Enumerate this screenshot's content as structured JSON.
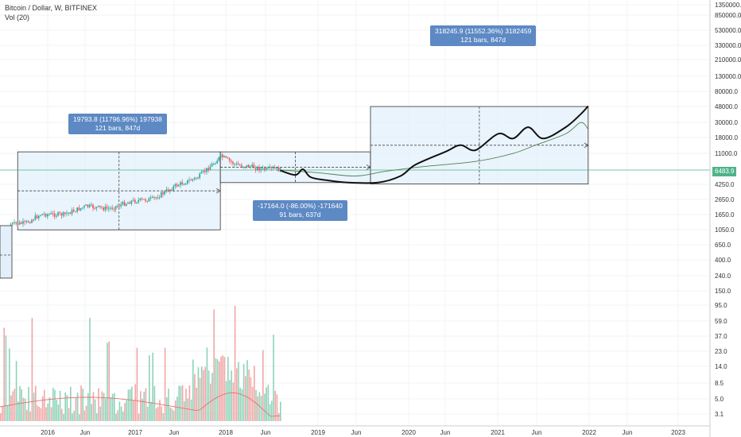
{
  "legend": {
    "symbol": "Bitcoin / Dollar, W, BITFINEX",
    "volume": "Vol (20)"
  },
  "current_price_label": "6483.9",
  "annotations": [
    {
      "line1": "19793.8 (11796.96%) 197938",
      "line2": "121 bars, 847d"
    },
    {
      "line1": "-17164.0 (-86.00%) -171640",
      "line2": "91 bars, 637d"
    },
    {
      "line1": "318245.9 (11552.36%) 3182459",
      "line2": "121 bars, 847d"
    }
  ],
  "colors": {
    "up": "#26a69a",
    "down": "#ef5350",
    "vol_up": "#8fd3b9",
    "vol_down": "#f2a6a6",
    "box_fill": "#e3f0fb",
    "box_stroke": "#333333",
    "projection": "#111111",
    "ma": "#4f7f4f",
    "vol_ma": "#e57373",
    "price_line": "#4fb38a"
  },
  "chart_data": {
    "type": "candlestick",
    "title": "Bitcoin / Dollar, W, BITFINEX",
    "y_scale": "log",
    "y_tick_labels": [
      "1350000.0",
      "850000.0",
      "530000.0",
      "330000.0",
      "210000.0",
      "130000.0",
      "80000.0",
      "48000.0",
      "30000.0",
      "18000.0",
      "11000.0",
      "6483.9",
      "4250.0",
      "2650.0",
      "1650.0",
      "1050.0",
      "650.0",
      "400.0",
      "240.0",
      "150.0",
      "95.0",
      "59.0",
      "37.0",
      "23.0",
      "14.0",
      "8.5",
      "5.0",
      "3.1"
    ],
    "x_tick_labels": [
      "2016",
      "Jun",
      "2017",
      "Jun",
      "2018",
      "Jun",
      "2019",
      "Jun",
      "2020",
      "Jun",
      "2021",
      "Jun",
      "2022",
      "Jun",
      "2023"
    ],
    "x_range": [
      "2015-07",
      "2023-07"
    ],
    "price_series": [
      [
        "2015-08",
        230
      ],
      [
        "2015-10",
        250
      ],
      [
        "2015-12",
        430
      ],
      [
        "2016-03",
        420
      ],
      [
        "2016-06",
        700
      ],
      [
        "2016-09",
        600
      ],
      [
        "2016-12",
        950
      ],
      [
        "2017-03",
        1100
      ],
      [
        "2017-06",
        2500
      ],
      [
        "2017-09",
        4200
      ],
      [
        "2017-12",
        15000
      ],
      [
        "2018-02",
        9000
      ],
      [
        "2018-04",
        8000
      ],
      [
        "2018-06",
        6500
      ],
      [
        "2018-07",
        7000
      ],
      [
        "2018-08",
        6483.9
      ]
    ],
    "projection_series": [
      [
        "2018-08",
        6300
      ],
      [
        "2018-10",
        4800
      ],
      [
        "2018-11",
        6800
      ],
      [
        "2018-12",
        4200
      ],
      [
        "2019-02",
        3500
      ],
      [
        "2019-05",
        3000
      ],
      [
        "2019-09",
        3000
      ],
      [
        "2019-12",
        4500
      ],
      [
        "2020-02",
        9000
      ],
      [
        "2020-06",
        20000
      ],
      [
        "2020-08",
        30000
      ],
      [
        "2020-10",
        22000
      ],
      [
        "2021-01",
        60000
      ],
      [
        "2021-03",
        45000
      ],
      [
        "2021-05",
        90000
      ],
      [
        "2021-07",
        45000
      ],
      [
        "2021-10",
        90000
      ],
      [
        "2021-12",
        200000
      ],
      [
        "2022-01",
        330000
      ]
    ],
    "ma_series": [
      [
        "2018-08",
        6500
      ],
      [
        "2019-01",
        5500
      ],
      [
        "2019-06",
        4500
      ],
      [
        "2019-10",
        6000
      ],
      [
        "2020-03",
        8000
      ],
      [
        "2020-10",
        11000
      ],
      [
        "2021-03",
        18000
      ],
      [
        "2021-06",
        30000
      ],
      [
        "2021-10",
        60000
      ],
      [
        "2021-12",
        120000
      ],
      [
        "2022-01",
        80000
      ]
    ],
    "measure_boxes": [
      {
        "from": "2015-09",
        "to": "2017-12",
        "low": 165,
        "high": 19800,
        "change": "19793.8 (11796.96%)",
        "bars": "121 bars, 847d"
      },
      {
        "from": "2017-12",
        "to": "2019-08",
        "low": 3000,
        "high": 19800,
        "change": "-17164.0 (-86.00%)",
        "bars": "91 bars, 637d"
      },
      {
        "from": "2019-08",
        "to": "2022-01",
        "low": 2750,
        "high": 320000,
        "change": "318245.9 (11552.36%)",
        "bars": "121 bars, 847d"
      }
    ],
    "volume_ma": "Vol (20)"
  }
}
